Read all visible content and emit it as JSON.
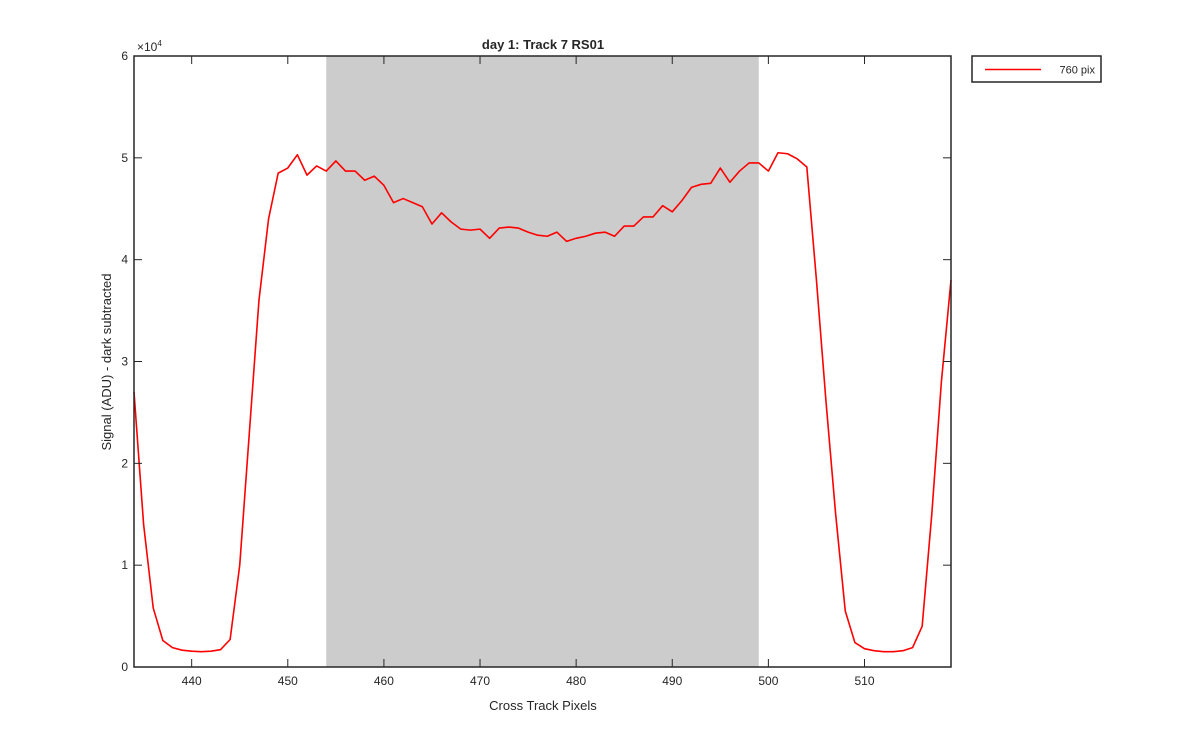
{
  "chart_data": {
    "type": "line",
    "title": "day 1: Track 7  RS01",
    "xlabel": "Cross Track Pixels",
    "ylabel": "Signal (ADU) - dark subtracted",
    "y_exponent_label": "×10",
    "y_exponent": "4",
    "xlim": [
      434,
      519
    ],
    "ylim": [
      0,
      60000
    ],
    "x_ticks": [
      440,
      450,
      460,
      470,
      480,
      490,
      500,
      510
    ],
    "y_ticks": [
      0,
      10000,
      20000,
      30000,
      40000,
      50000,
      60000
    ],
    "y_tick_labels": [
      "0",
      "1",
      "2",
      "3",
      "4",
      "5",
      "6"
    ],
    "grid": false,
    "legend_position": "outside-top-right",
    "shaded_region": {
      "x": [
        454,
        499
      ],
      "color": "#cccccc"
    },
    "series": [
      {
        "name": "760 pix",
        "color": "#ff0000",
        "x": [
          434,
          435,
          436,
          437,
          438,
          439,
          440,
          441,
          442,
          443,
          444,
          445,
          446,
          447,
          448,
          449,
          450,
          451,
          452,
          453,
          454,
          455,
          456,
          457,
          458,
          459,
          460,
          461,
          462,
          463,
          464,
          465,
          466,
          467,
          468,
          469,
          470,
          471,
          472,
          473,
          474,
          475,
          476,
          477,
          478,
          479,
          480,
          481,
          482,
          483,
          484,
          485,
          486,
          487,
          488,
          489,
          490,
          491,
          492,
          493,
          494,
          495,
          496,
          497,
          498,
          499,
          500,
          501,
          502,
          503,
          504,
          505,
          506,
          507,
          508,
          509,
          510,
          511,
          512,
          513,
          514,
          515,
          516,
          517,
          518,
          519
        ],
        "y": [
          27000,
          14000,
          5800,
          2600,
          1900,
          1650,
          1550,
          1500,
          1550,
          1700,
          2700,
          10000,
          23000,
          36000,
          44000,
          48500,
          49000,
          50300,
          48300,
          49200,
          48700,
          49700,
          48700,
          48700,
          47800,
          48200,
          47300,
          45600,
          46000,
          45600,
          45200,
          43500,
          44600,
          43700,
          43000,
          42900,
          43000,
          42100,
          43100,
          43200,
          43100,
          42700,
          42400,
          42300,
          42700,
          41800,
          42100,
          42300,
          42600,
          42700,
          42300,
          43300,
          43300,
          44200,
          44200,
          45300,
          44700,
          45800,
          47100,
          47400,
          47500,
          49000,
          47600,
          48700,
          49500,
          49500,
          48700,
          50500,
          50400,
          49900,
          49100,
          38000,
          26000,
          15000,
          5500,
          2400,
          1800,
          1600,
          1500,
          1500,
          1600,
          1900,
          4000,
          15000,
          28000,
          38000
        ]
      }
    ]
  }
}
